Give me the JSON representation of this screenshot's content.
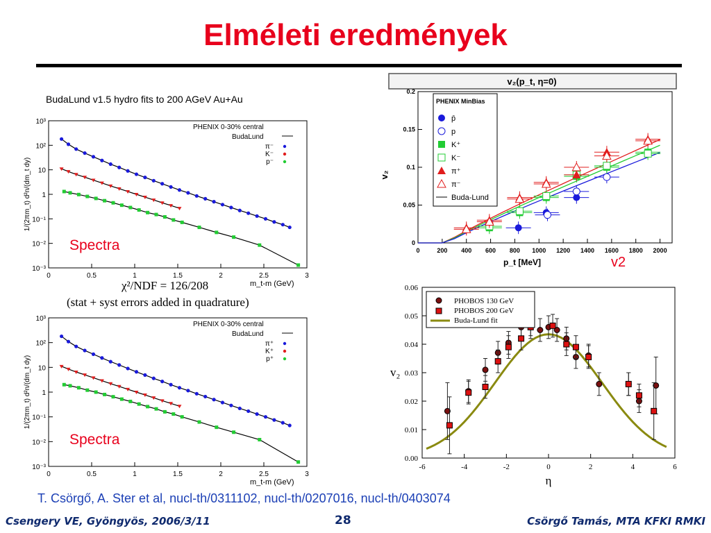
{
  "title": "Elméleti eredmények",
  "reference": "T. Csörgő, A. Ster et al, nucl-th/0311102, nucl-th/0207016, nucl-th/0403074",
  "footer": {
    "left": "Csengery VE, Gyöngyös, 2006/3/11",
    "page": "28",
    "right": "Csörgő Tamás, MTA KFKI RMKI"
  },
  "spectra_plots": {
    "header": "BudaLund v1.5 hydro fits to 200 AGeV Au+Au",
    "chi2": "χ²/NDF = 126/208",
    "errors_note": "(stat + syst errors added in quadrature)",
    "top": {
      "label": "Spectra",
      "legend_title": "PHENIX 0-30% central",
      "model": "BudaLund",
      "species": [
        "π⁻",
        "K⁻",
        "p⁻"
      ]
    },
    "bottom": {
      "label": "Spectra",
      "legend_title": "PHENIX 0-30% central",
      "model": "BudaLund",
      "species": [
        "π⁺",
        "K⁺",
        "p⁺"
      ]
    },
    "ylabel": "1/(2πm_t) d²n/(dm_t dy)",
    "xlabel": "m_t-m (GeV)",
    "xticks": [
      "0",
      "0.5",
      "1",
      "1.5",
      "2",
      "2.5",
      "3"
    ],
    "yticks": [
      "10⁻³",
      "10⁻²",
      "10⁻¹",
      "1",
      "10",
      "10²",
      "10³"
    ]
  },
  "v2pt_plot": {
    "title": "v₂(p_t, η=0)",
    "corner_label": "v2",
    "legend_title": "PHENIX MinBias",
    "legend": [
      "p̄",
      "p",
      "K⁺",
      "K⁻",
      "π⁺",
      "π⁻",
      "Buda-Lund"
    ],
    "ylabel": "v₂",
    "xlabel": "p_t [MeV]",
    "xticks": [
      "0",
      "200",
      "400",
      "600",
      "800",
      "1000",
      "1200",
      "1400",
      "1600",
      "1800",
      "2000"
    ],
    "yticks": [
      "0",
      "0.05",
      "0.1",
      "0.15",
      "0.2"
    ]
  },
  "v2eta_plot": {
    "legend": [
      "PHOBOS 130 GeV",
      "PHOBOS 200 GeV",
      "Buda-Lund fit"
    ],
    "ylabel": "v₂",
    "xlabel": "η",
    "xticks": [
      "-6",
      "-4",
      "-2",
      "0",
      "2",
      "4",
      "6"
    ],
    "yticks": [
      "0.00",
      "0.01",
      "0.02",
      "0.03",
      "0.04",
      "0.05",
      "0.06"
    ]
  },
  "colors": {
    "title": "#e8001c",
    "footer": "#0f2a6e",
    "reference": "#1b3fb5",
    "spectra_label": "#e8001c",
    "pion": "#1a1adb",
    "kaon": "#e11d1d",
    "proton": "#22cc33"
  },
  "chart_data": [
    {
      "type": "scatter",
      "name": "spectra-negative",
      "xlim": [
        0,
        3
      ],
      "ylim_log10": [
        -3,
        3
      ],
      "yscale": "log",
      "series": [
        {
          "name": "π⁻",
          "x": [
            0.15,
            0.23,
            0.32,
            0.42,
            0.52,
            0.62,
            0.72,
            0.82,
            0.92,
            1.02,
            1.12,
            1.22,
            1.32,
            1.42,
            1.52,
            1.62,
            1.72,
            1.82,
            1.92,
            2.02,
            2.12,
            2.22,
            2.32,
            2.42,
            2.52,
            2.62,
            2.72,
            2.8
          ],
          "y": [
            180,
            110,
            70,
            48,
            34,
            24,
            17,
            12.5,
            9,
            6.6,
            4.9,
            3.6,
            2.7,
            2.0,
            1.5,
            1.15,
            0.86,
            0.66,
            0.5,
            0.38,
            0.29,
            0.22,
            0.17,
            0.13,
            0.1,
            0.075,
            0.058,
            0.045
          ]
        },
        {
          "name": "K⁻",
          "x": [
            0.15,
            0.23,
            0.32,
            0.42,
            0.52,
            0.62,
            0.72,
            0.82,
            0.92,
            1.02,
            1.12,
            1.22,
            1.32,
            1.42,
            1.52
          ],
          "y": [
            11,
            8.5,
            6.5,
            5.0,
            3.8,
            2.9,
            2.2,
            1.7,
            1.3,
            1.0,
            0.77,
            0.59,
            0.45,
            0.35,
            0.27
          ]
        },
        {
          "name": "p⁻",
          "x": [
            0.18,
            0.25,
            0.35,
            0.45,
            0.55,
            0.65,
            0.75,
            0.85,
            0.95,
            1.05,
            1.15,
            1.25,
            1.35,
            1.45,
            1.55,
            1.75,
            1.95,
            2.15,
            2.45,
            2.9
          ],
          "y": [
            1.3,
            1.15,
            0.98,
            0.82,
            0.68,
            0.55,
            0.45,
            0.36,
            0.29,
            0.23,
            0.18,
            0.15,
            0.12,
            0.09,
            0.072,
            0.045,
            0.028,
            0.018,
            0.0085,
            0.0013
          ]
        }
      ]
    },
    {
      "type": "scatter",
      "name": "spectra-positive",
      "xlim": [
        0,
        3
      ],
      "ylim_log10": [
        -3,
        3
      ],
      "yscale": "log",
      "series": [
        {
          "name": "π⁺",
          "x": [
            0.15,
            0.23,
            0.32,
            0.42,
            0.52,
            0.62,
            0.72,
            0.82,
            0.92,
            1.02,
            1.12,
            1.22,
            1.32,
            1.42,
            1.52,
            1.62,
            1.72,
            1.82,
            1.92,
            2.02,
            2.12,
            2.22,
            2.32,
            2.42,
            2.52,
            2.62,
            2.72,
            2.8
          ],
          "y": [
            180,
            110,
            70,
            48,
            34,
            24,
            17,
            12.5,
            9,
            6.6,
            4.9,
            3.6,
            2.7,
            2.0,
            1.5,
            1.15,
            0.86,
            0.66,
            0.5,
            0.38,
            0.29,
            0.22,
            0.17,
            0.13,
            0.1,
            0.075,
            0.058,
            0.045
          ]
        },
        {
          "name": "K⁺",
          "x": [
            0.15,
            0.23,
            0.32,
            0.42,
            0.52,
            0.62,
            0.72,
            0.82,
            0.92,
            1.02,
            1.12,
            1.22,
            1.32,
            1.42,
            1.52
          ],
          "y": [
            11,
            8.5,
            6.5,
            5.0,
            3.8,
            2.9,
            2.2,
            1.7,
            1.3,
            1.0,
            0.77,
            0.59,
            0.45,
            0.35,
            0.27
          ]
        },
        {
          "name": "p⁺",
          "x": [
            0.18,
            0.25,
            0.35,
            0.45,
            0.55,
            0.65,
            0.75,
            0.85,
            0.95,
            1.05,
            1.15,
            1.25,
            1.35,
            1.45,
            1.55,
            1.75,
            1.95,
            2.15,
            2.45,
            2.9
          ],
          "y": [
            2.0,
            1.8,
            1.5,
            1.2,
            1.0,
            0.8,
            0.65,
            0.52,
            0.42,
            0.33,
            0.26,
            0.21,
            0.16,
            0.13,
            0.1,
            0.062,
            0.038,
            0.024,
            0.012,
            0.0015
          ]
        }
      ]
    },
    {
      "type": "scatter",
      "name": "v2-vs-pt",
      "xlim": [
        0,
        2100
      ],
      "ylim": [
        0,
        0.2
      ],
      "series": [
        {
          "name": "p̄",
          "x": [
            830,
            1060,
            1310
          ],
          "y": [
            0.02,
            0.04,
            0.06
          ]
        },
        {
          "name": "p",
          "x": [
            1070,
            1310,
            1560
          ],
          "y": [
            0.037,
            0.068,
            0.087
          ]
        },
        {
          "name": "K⁺",
          "x": [
            590,
            840,
            1060,
            1310,
            1560,
            1900
          ],
          "y": [
            0.02,
            0.04,
            0.06,
            0.088,
            0.1,
            0.12
          ]
        },
        {
          "name": "K⁻",
          "x": [
            590,
            840,
            1060,
            1310,
            1560,
            1900
          ],
          "y": [
            0.022,
            0.042,
            0.062,
            0.09,
            0.102,
            0.118
          ]
        },
        {
          "name": "π⁺",
          "x": [
            400,
            590,
            840,
            1060,
            1310,
            1560,
            1900
          ],
          "y": [
            0.02,
            0.03,
            0.06,
            0.08,
            0.09,
            0.12,
            0.137
          ]
        },
        {
          "name": "π⁻",
          "x": [
            400,
            590,
            840,
            1060,
            1310,
            1560,
            1900
          ],
          "y": [
            0.018,
            0.028,
            0.058,
            0.078,
            0.1,
            0.115,
            0.135
          ]
        }
      ]
    },
    {
      "type": "scatter",
      "name": "v2-vs-eta",
      "xlim": [
        -6,
        6
      ],
      "ylim": [
        0,
        0.06
      ],
      "series": [
        {
          "name": "PHOBOS 130 GeV",
          "x": [
            -4.8,
            -3.8,
            -3.0,
            -2.4,
            -1.9,
            -1.3,
            -0.85,
            -0.4,
            0,
            0.4,
            0.85,
            1.3,
            1.9,
            2.4,
            3.8,
            4.3,
            5.1
          ],
          "y": [
            0.0165,
            0.0235,
            0.031,
            0.037,
            0.0405,
            0.046,
            0.047,
            0.045,
            0.046,
            0.045,
            0.042,
            0.0355,
            0.036,
            0.026,
            0.026,
            0.02,
            0.0255
          ]
        },
        {
          "name": "PHOBOS 200 GeV",
          "x": [
            -4.7,
            -3.8,
            -3.0,
            -2.4,
            -1.9,
            -1.3,
            -0.85,
            0.2,
            0.85,
            1.3,
            1.9,
            3.8,
            4.3,
            5.0
          ],
          "y": [
            0.0115,
            0.023,
            0.025,
            0.034,
            0.039,
            0.042,
            0.046,
            0.0465,
            0.04,
            0.039,
            0.0355,
            0.026,
            0.022,
            0.0165
          ]
        }
      ]
    }
  ]
}
